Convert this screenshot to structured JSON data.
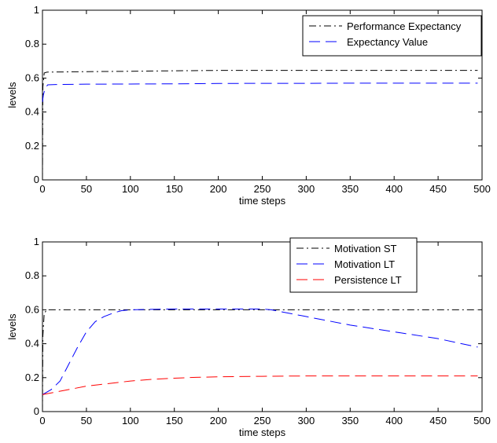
{
  "chart_data": [
    {
      "type": "line",
      "xlabel": "time steps",
      "ylabel": "levels",
      "xlim": [
        0,
        500
      ],
      "ylim": [
        0,
        1
      ],
      "xticks": [
        "0",
        "50",
        "100",
        "150",
        "200",
        "250",
        "300",
        "350",
        "400",
        "450",
        "500"
      ],
      "yticks": [
        "0",
        "0.2",
        "0.4",
        "0.6",
        "0.8",
        "1"
      ],
      "grid": false,
      "legend_position": "top-right",
      "series": [
        {
          "name": "Performance Expectancy",
          "color": "#000000",
          "style": "dash-dot",
          "points": [
            [
              0,
              0.0
            ],
            [
              0.5,
              0.55
            ],
            [
              2,
              0.63
            ],
            [
              5,
              0.635
            ],
            [
              50,
              0.638
            ],
            [
              100,
              0.64
            ],
            [
              150,
              0.643
            ],
            [
              200,
              0.645
            ],
            [
              250,
              0.645
            ],
            [
              300,
              0.645
            ],
            [
              350,
              0.645
            ],
            [
              400,
              0.645
            ],
            [
              450,
              0.645
            ],
            [
              495,
              0.645
            ]
          ]
        },
        {
          "name": "Expectancy Value",
          "color": "#0000ff",
          "style": "dash",
          "points": [
            [
              0,
              0.46
            ],
            [
              1,
              0.5
            ],
            [
              3,
              0.54
            ],
            [
              6,
              0.56
            ],
            [
              15,
              0.562
            ],
            [
              50,
              0.564
            ],
            [
              100,
              0.565
            ],
            [
              150,
              0.566
            ],
            [
              200,
              0.568
            ],
            [
              250,
              0.569
            ],
            [
              300,
              0.569
            ],
            [
              350,
              0.57
            ],
            [
              400,
              0.57
            ],
            [
              450,
              0.57
            ],
            [
              495,
              0.57
            ]
          ]
        }
      ]
    },
    {
      "type": "line",
      "xlabel": "time steps",
      "ylabel": "levels",
      "xlim": [
        0,
        500
      ],
      "ylim": [
        0,
        1
      ],
      "xticks": [
        "0",
        "50",
        "100",
        "150",
        "200",
        "250",
        "300",
        "350",
        "400",
        "450",
        "500"
      ],
      "yticks": [
        "0",
        "0.2",
        "0.4",
        "0.6",
        "0.8",
        "1"
      ],
      "grid": false,
      "legend_position": "top-right",
      "series": [
        {
          "name": "Motivation ST",
          "color": "#000000",
          "style": "dash-dot",
          "points": [
            [
              0,
              0.0
            ],
            [
              0.5,
              0.45
            ],
            [
              2,
              0.58
            ],
            [
              5,
              0.6
            ],
            [
              50,
              0.6
            ],
            [
              100,
              0.6
            ],
            [
              150,
              0.6
            ],
            [
              200,
              0.6
            ],
            [
              250,
              0.6
            ],
            [
              300,
              0.6
            ],
            [
              350,
              0.6
            ],
            [
              400,
              0.6
            ],
            [
              450,
              0.6
            ],
            [
              495,
              0.6
            ]
          ]
        },
        {
          "name": "Motivation LT",
          "color": "#0000ff",
          "style": "dash",
          "points": [
            [
              0,
              0.1
            ],
            [
              10,
              0.13
            ],
            [
              20,
              0.18
            ],
            [
              30,
              0.28
            ],
            [
              40,
              0.38
            ],
            [
              50,
              0.47
            ],
            [
              60,
              0.53
            ],
            [
              70,
              0.56
            ],
            [
              80,
              0.58
            ],
            [
              90,
              0.595
            ],
            [
              100,
              0.6
            ],
            [
              150,
              0.605
            ],
            [
              200,
              0.605
            ],
            [
              250,
              0.605
            ],
            [
              260,
              0.6
            ],
            [
              300,
              0.56
            ],
            [
              350,
              0.51
            ],
            [
              400,
              0.47
            ],
            [
              450,
              0.43
            ],
            [
              495,
              0.38
            ]
          ]
        },
        {
          "name": "Persistence LT",
          "color": "#ff0000",
          "style": "dash",
          "points": [
            [
              0,
              0.1
            ],
            [
              25,
              0.125
            ],
            [
              50,
              0.15
            ],
            [
              75,
              0.165
            ],
            [
              100,
              0.18
            ],
            [
              125,
              0.19
            ],
            [
              150,
              0.197
            ],
            [
              175,
              0.202
            ],
            [
              200,
              0.205
            ],
            [
              250,
              0.208
            ],
            [
              300,
              0.21
            ],
            [
              350,
              0.21
            ],
            [
              400,
              0.21
            ],
            [
              450,
              0.21
            ],
            [
              495,
              0.21
            ]
          ]
        }
      ]
    }
  ]
}
